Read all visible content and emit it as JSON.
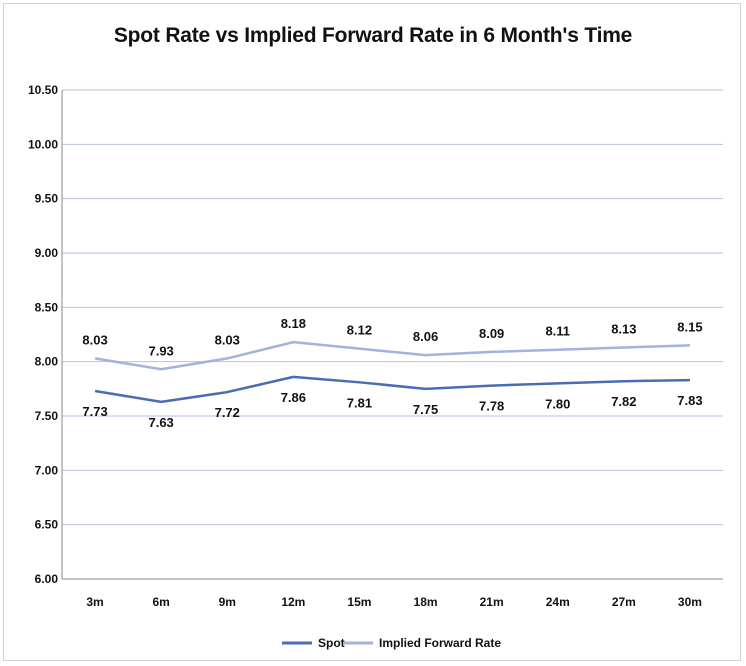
{
  "chart_data": {
    "type": "line",
    "title": "Spot Rate vs Implied Forward Rate in 6 Month's Time",
    "xlabel": "",
    "ylabel": "",
    "categories": [
      "3m",
      "6m",
      "9m",
      "12m",
      "15m",
      "18m",
      "21m",
      "24m",
      "27m",
      "30m"
    ],
    "ylim": [
      6.0,
      10.5
    ],
    "yticks": [
      "6.00",
      "6.50",
      "7.00",
      "7.50",
      "8.00",
      "8.50",
      "9.00",
      "9.50",
      "10.00",
      "10.50"
    ],
    "grid": true,
    "legend_position": "bottom",
    "series": [
      {
        "name": "Spot",
        "color": "#4a6cb3",
        "values": [
          7.73,
          7.63,
          7.72,
          7.86,
          7.81,
          7.75,
          7.78,
          7.8,
          7.82,
          7.83
        ],
        "labels": [
          "7.73",
          "7.63",
          "7.72",
          "7.86",
          "7.81",
          "7.75",
          "7.78",
          "7.80",
          "7.82",
          "7.83"
        ]
      },
      {
        "name": "Implied Forward Rate",
        "color": "#a3b3de",
        "values": [
          8.03,
          7.93,
          8.03,
          8.18,
          8.12,
          8.06,
          8.09,
          8.11,
          8.13,
          8.15
        ],
        "labels": [
          "8.03",
          "7.93",
          "8.03",
          "8.18",
          "8.12",
          "8.06",
          "8.09",
          "8.11",
          "8.13",
          "8.15"
        ]
      }
    ]
  }
}
